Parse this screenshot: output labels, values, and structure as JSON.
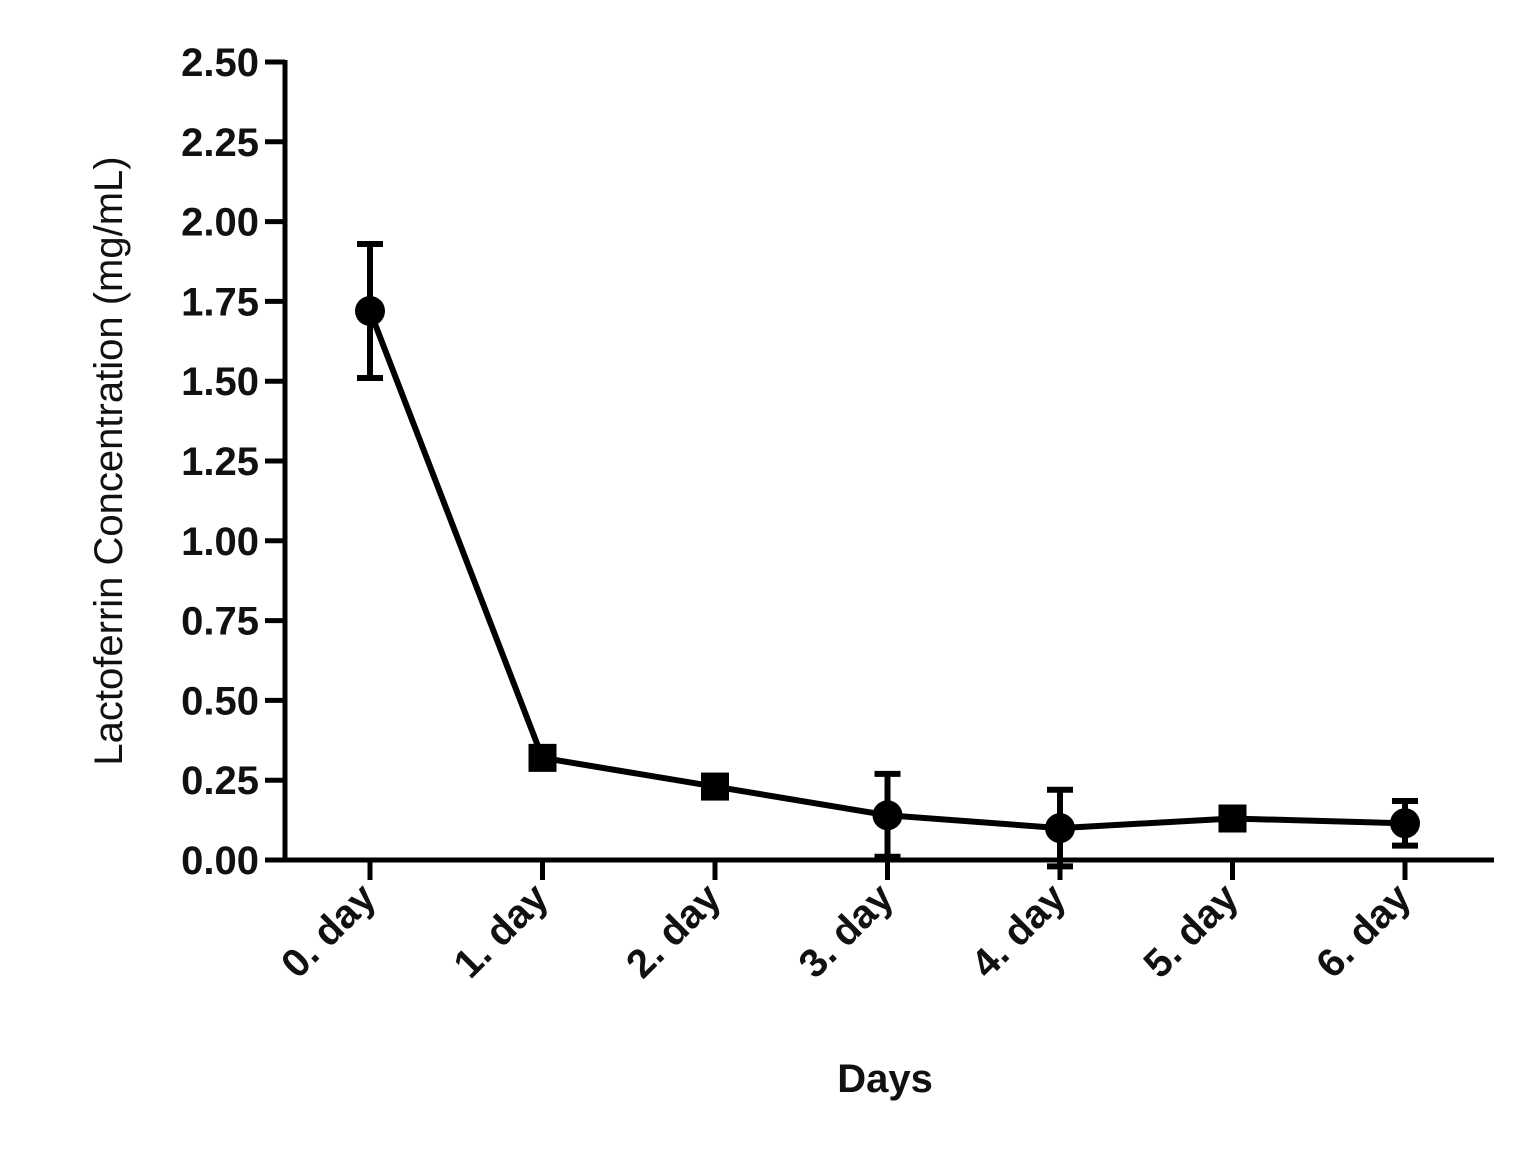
{
  "chart_data": {
    "type": "line",
    "xlabel": "Days",
    "ylabel": "Lactoferrin Concentration (mg/mL)",
    "categories": [
      "0. day",
      "1. day",
      "2. day",
      "3. day",
      "4. day",
      "5. day",
      "6. day"
    ],
    "series": [
      {
        "values": [
          1.72,
          0.32,
          0.23,
          0.14,
          0.1,
          0.13,
          0.115
        ],
        "error": [
          0.21,
          0.01,
          0.01,
          0.13,
          0.12,
          0.01,
          0.07
        ],
        "markers": [
          "circle",
          "square",
          "square",
          "circle",
          "circle",
          "square",
          "circle"
        ]
      }
    ],
    "ylim": [
      0,
      2.5
    ],
    "yticks": [
      "0.00",
      "0.25",
      "0.50",
      "0.75",
      "1.00",
      "1.25",
      "1.50",
      "1.75",
      "2.00",
      "2.25",
      "2.50"
    ],
    "grid": false,
    "legend": "none",
    "colors": {
      "line": "#000000",
      "axis": "#000000",
      "text": "#111111"
    }
  }
}
